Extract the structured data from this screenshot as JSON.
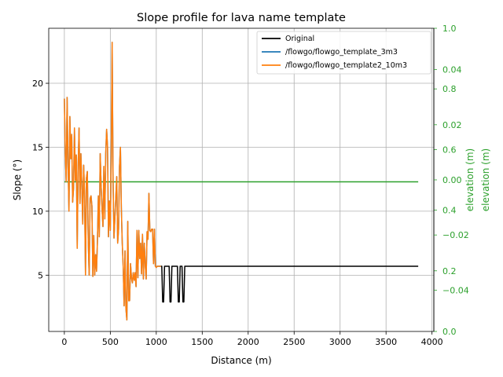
{
  "chart_data": {
    "type": "line",
    "title": "Slope profile for lava name template",
    "xlabel": "Distance (m)",
    "ylabel": "Slope (°)",
    "xlim": [
      -170,
      4020
    ],
    "ylim": [
      0.6,
      24.3
    ],
    "x_ticks": [
      0,
      500,
      1000,
      1500,
      2000,
      2500,
      3000,
      3500,
      4000
    ],
    "y_ticks": [
      5,
      10,
      15,
      20
    ],
    "grid": true,
    "legend_position": "top-right",
    "series": [
      {
        "name": "Original",
        "color": "#000000",
        "x": [
          1050,
          1060,
          1070,
          1080,
          1090,
          1130,
          1140,
          1150,
          1160,
          1170,
          1180,
          1190,
          1200,
          1210,
          1220,
          1230,
          1240,
          1250,
          1260,
          1270,
          1280,
          1290,
          1300,
          1310,
          1320,
          1330,
          1340,
          3850
        ],
        "y": [
          5.7,
          5.7,
          2.9,
          2.9,
          5.7,
          5.7,
          5.7,
          2.9,
          2.9,
          5.7,
          5.7,
          5.7,
          5.7,
          5.7,
          5.7,
          5.7,
          2.9,
          2.9,
          5.7,
          5.7,
          5.7,
          2.9,
          2.9,
          5.7,
          5.7,
          5.7,
          5.7,
          5.7
        ]
      },
      {
        "name": "/flowgo/flowgo_template_3m3",
        "color": "#1f77b4",
        "x": [
          0,
          10,
          20,
          30,
          40,
          50,
          60,
          70,
          80,
          90,
          100,
          110,
          120,
          130,
          140,
          150,
          160,
          170,
          180,
          190,
          200,
          210,
          220,
          230,
          240,
          250,
          260,
          270,
          280,
          290,
          300,
          310,
          320,
          330,
          340,
          350,
          360,
          370,
          380,
          390,
          400,
          410,
          420,
          430,
          440,
          450,
          460,
          470,
          480,
          490,
          500,
          510,
          520,
          530,
          540,
          550,
          560,
          570,
          580,
          590,
          600,
          610,
          620,
          630,
          640,
          650,
          660,
          670,
          680,
          690,
          700,
          710,
          720,
          730,
          740,
          750,
          760,
          770,
          780,
          790,
          800,
          810,
          820,
          830,
          840,
          850,
          860,
          870,
          880,
          890,
          900,
          910,
          920,
          930,
          940,
          950,
          960,
          970,
          980,
          990,
          1000,
          1010,
          1020,
          1030,
          1040,
          1050
        ],
        "y": [
          18.8,
          14.5,
          12.3,
          18.9,
          13.8,
          10.0,
          17.4,
          14.1,
          16.0,
          10.7,
          11.8,
          16.5,
          12.4,
          14.4,
          7.1,
          13.5,
          16.5,
          10.6,
          14.5,
          12.0,
          9.0,
          13.6,
          11.3,
          5.0,
          12.6,
          13.1,
          7.6,
          5.0,
          11.0,
          11.2,
          10.4,
          4.9,
          8.1,
          5.0,
          6.6,
          5.3,
          7.7,
          11.2,
          8.0,
          14.5,
          12.0,
          10.2,
          8.8,
          13.5,
          9.4,
          14.5,
          16.4,
          15.0,
          8.0,
          10.8,
          8.5,
          14.0,
          23.2,
          12.3,
          7.9,
          9.5,
          11.1,
          12.7,
          7.5,
          8.6,
          13.5,
          15.0,
          10.2,
          7.5,
          5.7,
          2.6,
          6.9,
          2.4,
          1.5,
          9.2,
          3.0,
          3.0,
          5.9,
          4.8,
          4.4,
          5.2,
          4.6,
          5.2,
          4.1,
          8.5,
          4.8,
          8.5,
          6.3,
          7.5,
          5.1,
          8.2,
          4.7,
          7.5,
          5.8,
          4.7,
          8.4,
          7.8,
          11.4,
          8.5,
          8.4,
          8.6,
          8.6,
          5.9,
          8.6,
          5.7,
          5.6,
          5.7,
          5.7,
          5.7,
          5.7,
          5.7
        ]
      },
      {
        "name": "/flowgo/flowgo_template2_10m3",
        "color": "#ff7f0e",
        "x": [
          0,
          10,
          20,
          30,
          40,
          50,
          60,
          70,
          80,
          90,
          100,
          110,
          120,
          130,
          140,
          150,
          160,
          170,
          180,
          190,
          200,
          210,
          220,
          230,
          240,
          250,
          260,
          270,
          280,
          290,
          300,
          310,
          320,
          330,
          340,
          350,
          360,
          370,
          380,
          390,
          400,
          410,
          420,
          430,
          440,
          450,
          460,
          470,
          480,
          490,
          500,
          510,
          520,
          530,
          540,
          550,
          560,
          570,
          580,
          590,
          600,
          610,
          620,
          630,
          640,
          650,
          660,
          670,
          680,
          690,
          700,
          710,
          720,
          730,
          740,
          750,
          760,
          770,
          780,
          790,
          800,
          810,
          820,
          830,
          840,
          850,
          860,
          870,
          880,
          890,
          900,
          910,
          920,
          930,
          940,
          950,
          960,
          970,
          980,
          990,
          1000,
          1010,
          1020,
          1030,
          1040,
          1050
        ],
        "y": [
          18.8,
          14.5,
          12.3,
          18.9,
          13.8,
          10.0,
          17.4,
          14.1,
          16.0,
          10.7,
          11.8,
          16.5,
          12.4,
          14.4,
          7.1,
          13.5,
          16.5,
          10.6,
          14.5,
          12.0,
          9.0,
          13.6,
          11.3,
          5.0,
          12.6,
          13.1,
          7.6,
          5.0,
          11.0,
          11.2,
          10.4,
          4.9,
          8.1,
          5.0,
          6.6,
          5.3,
          7.7,
          11.2,
          8.0,
          14.5,
          12.0,
          10.2,
          8.8,
          13.5,
          9.4,
          14.5,
          16.4,
          15.0,
          8.0,
          10.8,
          8.5,
          14.0,
          23.2,
          12.3,
          7.9,
          9.5,
          11.1,
          12.7,
          7.5,
          8.6,
          13.5,
          15.0,
          10.2,
          7.5,
          5.7,
          2.6,
          6.9,
          2.4,
          1.5,
          9.2,
          3.0,
          3.0,
          5.9,
          4.8,
          4.4,
          5.2,
          4.6,
          5.2,
          4.1,
          8.5,
          4.8,
          8.5,
          6.3,
          7.5,
          5.1,
          8.2,
          4.7,
          7.5,
          5.8,
          4.7,
          8.4,
          7.8,
          11.4,
          8.5,
          8.4,
          8.6,
          8.6,
          5.9,
          8.6,
          5.7,
          5.6,
          5.7,
          5.7,
          5.7,
          5.7,
          5.7
        ]
      },
      {
        "color": "#2ca02c",
        "x": [
          0,
          3850
        ],
        "y": [
          12.3,
          12.3
        ]
      }
    ],
    "right_axes": [
      {
        "label": "elevation (m)",
        "color": "#2ca02c",
        "ylim": [
          0.0,
          1.0
        ],
        "ticks": [
          0.0,
          0.2,
          0.4,
          0.6,
          0.8,
          1.0
        ],
        "tick_labels": [
          "0.0",
          "0.2",
          "0.4",
          "0.6",
          "0.8",
          "1.0"
        ]
      },
      {
        "label": "elevation (m)",
        "color": "#2ca02c",
        "ylim": [
          -0.055,
          0.055
        ],
        "ticks": [
          -0.04,
          -0.02,
          0.0,
          0.02,
          0.04
        ],
        "tick_labels": [
          "−0.04",
          "−0.02",
          "0.00",
          "0.02",
          "0.04"
        ]
      }
    ]
  }
}
